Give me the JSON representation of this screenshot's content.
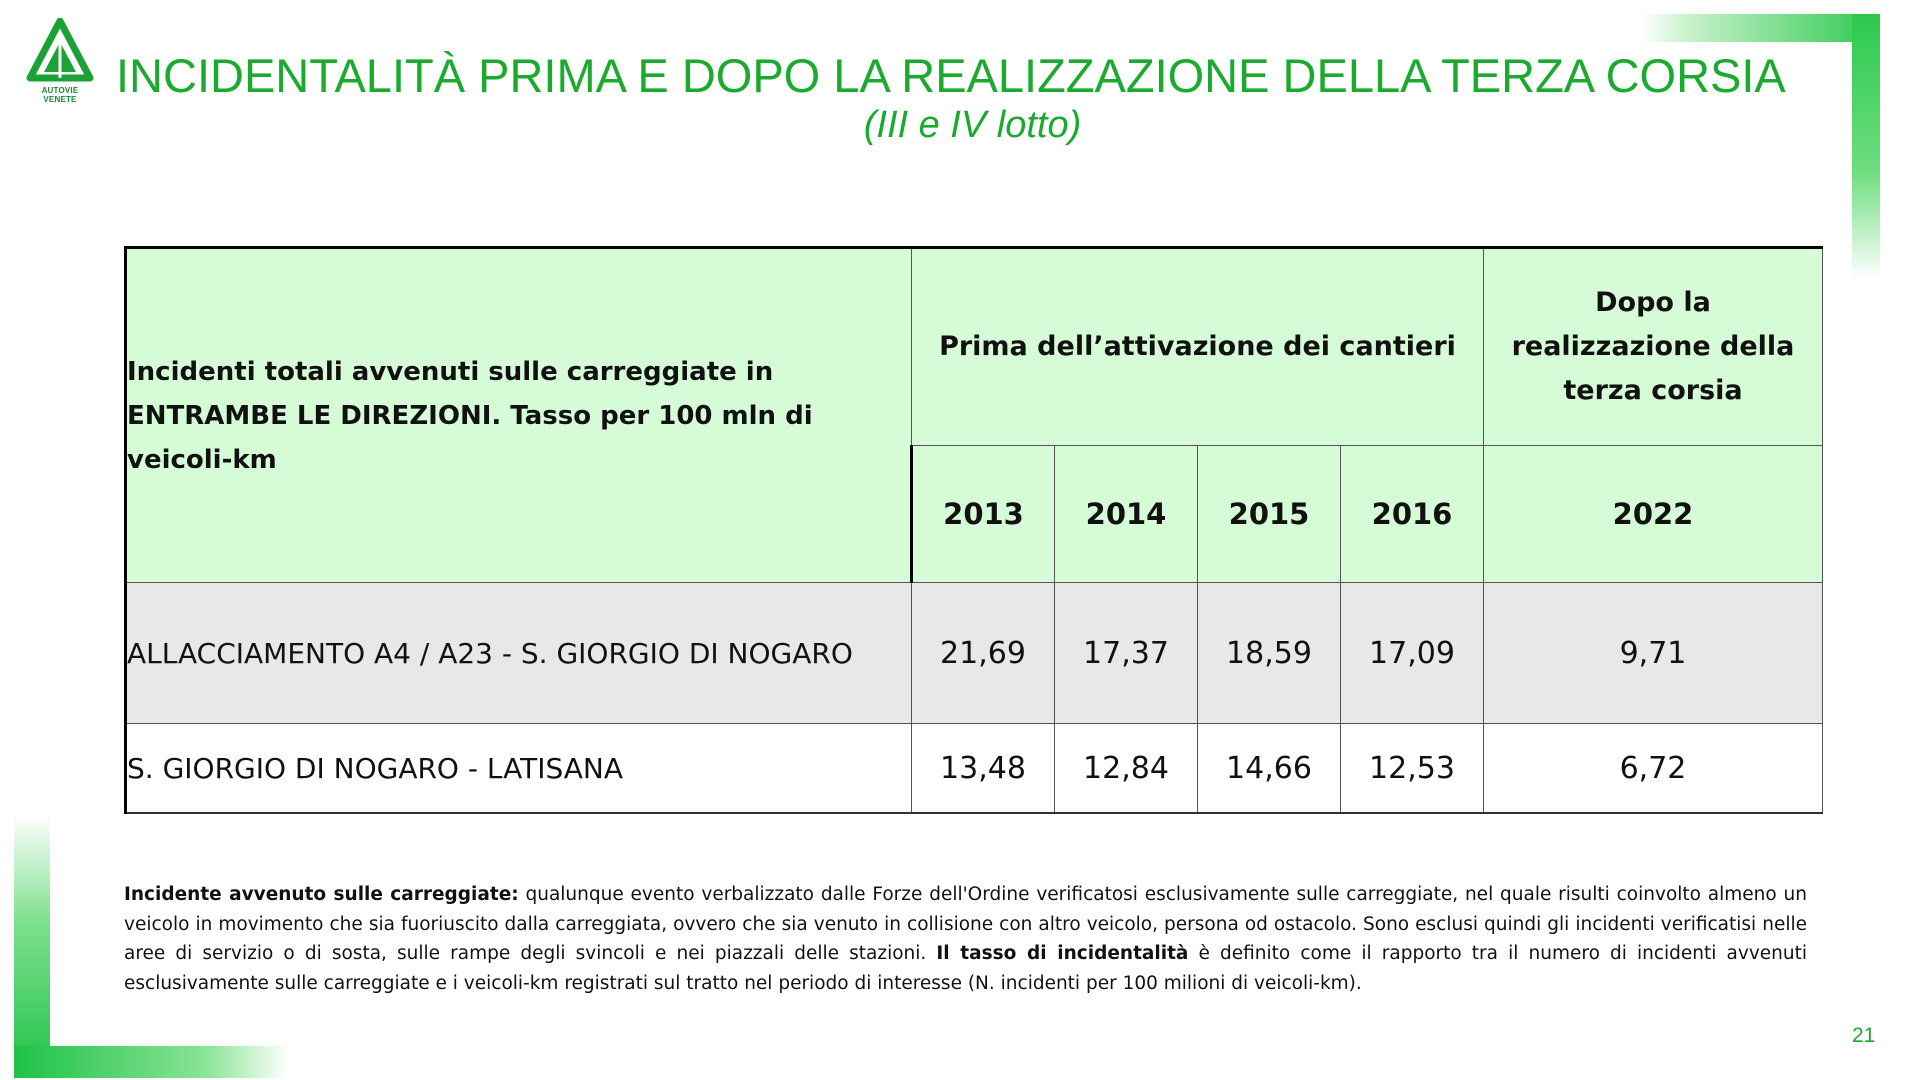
{
  "header": {
    "logo_text": "AUTOVIE VENETE",
    "title": "INCIDENTALITÀ PRIMA E DOPO LA REALIZZAZIONE DELLA TERZA CORSIA",
    "subtitle": "(III e IV lotto)"
  },
  "table": {
    "description_header": "Incidenti totali avvenuti sulle carreggiate in ENTRAMBE LE DIREZIONI. Tasso per 100 mln di veicoli-km",
    "group_before": "Prima dell’attivazione dei cantieri",
    "group_after": "Dopo la realizzazione della terza corsia",
    "years": [
      "2013",
      "2014",
      "2015",
      "2016",
      "2022"
    ],
    "rows": [
      {
        "label": "ALLACCIAMENTO A4 / A23 - S. GIORGIO DI NOGARO",
        "values": [
          "21,69",
          "17,37",
          "18,59",
          "17,09",
          "9,71"
        ]
      },
      {
        "label": "S. GIORGIO DI NOGARO - LATISANA",
        "values": [
          "13,48",
          "12,84",
          "14,66",
          "12,53",
          "6,72"
        ]
      }
    ]
  },
  "footnote": {
    "term1": "Incidente avvenuto sulle carreggiate:",
    "text1": " qualunque evento verbalizzato dalle Forze dell'Ordine verificatosi esclusivamente sulle carreggiate, nel quale risulti coinvolto almeno un veicolo in movimento che sia fuoriuscito dalla carreggiata, ovvero che sia venuto in collisione con altro veicolo, persona od ostacolo. Sono esclusi quindi gli incidenti verificatisi nelle aree di servizio o di sosta, sulle rampe degli svincoli e nei piazzali delle stazioni. ",
    "term2": "Il tasso di incidentalità",
    "text2": " è definito come il rapporto tra il numero di incidenti avvenuti esclusivamente sulle carreggiate e i veicoli-km registrati sul tratto nel periodo di interesse (N. incidenti per 100 milioni di veicoli-km)."
  },
  "page_number": "21",
  "colors": {
    "accent": "#1aab2e",
    "header_fill": "#d6fbd7",
    "row_fill": "#e8e8e8"
  },
  "icons": {
    "logo": "autovie-venete-logo"
  }
}
